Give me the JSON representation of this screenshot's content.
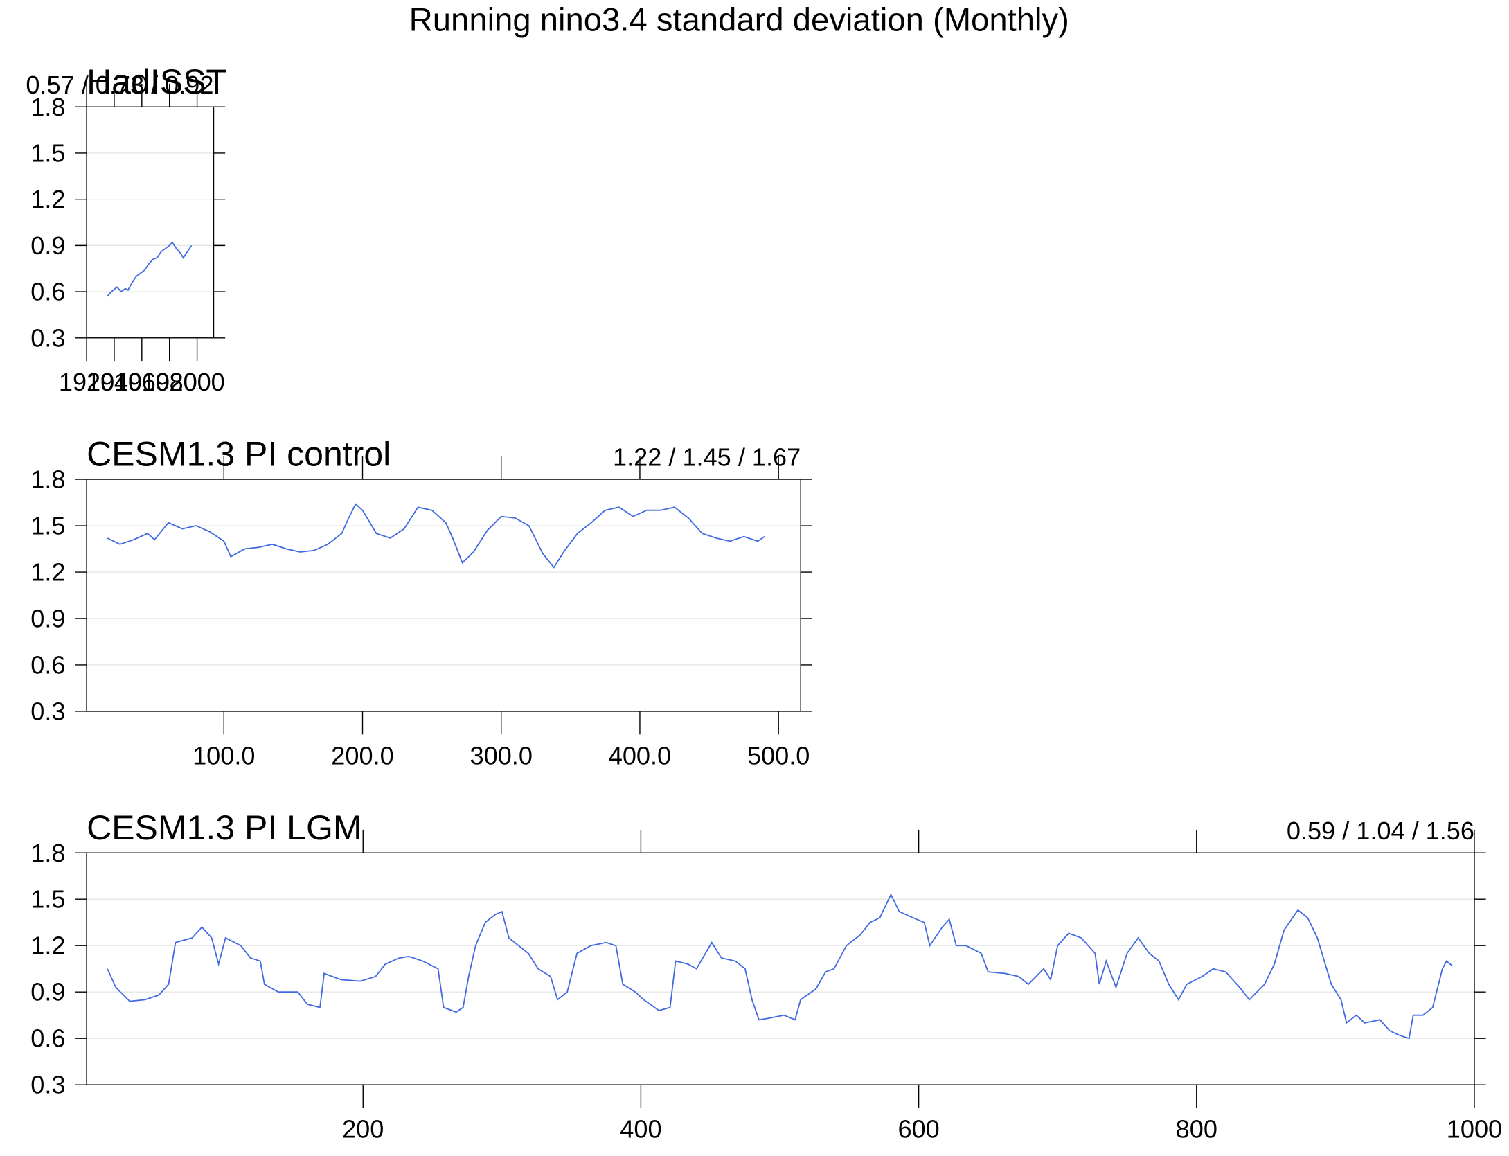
{
  "title": "Running nino3.4 standard deviation (Monthly)",
  "chart_data": [
    {
      "type": "line",
      "title": "HadISST",
      "subtitle": "0.57 / 0.73 / 0.92",
      "xlim": [
        1920,
        2012
      ],
      "xticks": [
        1920,
        1940,
        1960,
        1980,
        2000
      ],
      "ylim": [
        0.3,
        1.8
      ],
      "yticks": [
        0.3,
        0.6,
        0.9,
        1.2,
        1.5,
        1.8
      ],
      "grid": true,
      "color": "#4169e1",
      "x": [
        1935,
        1938,
        1942,
        1945,
        1948,
        1950,
        1953,
        1956,
        1959,
        1962,
        1965,
        1968,
        1971,
        1974,
        1977,
        1980,
        1982,
        1985,
        1988,
        1990,
        1993,
        1996
      ],
      "values": [
        0.57,
        0.6,
        0.63,
        0.6,
        0.62,
        0.61,
        0.66,
        0.7,
        0.72,
        0.74,
        0.78,
        0.81,
        0.82,
        0.86,
        0.88,
        0.9,
        0.92,
        0.88,
        0.85,
        0.82,
        0.86,
        0.9
      ]
    },
    {
      "type": "line",
      "title": "CESM1.3 PI control",
      "subtitle": "1.22 / 1.45 / 1.67",
      "xlim": [
        1,
        516
      ],
      "xticks": [
        {
          "value": 100,
          "label": "100.0"
        },
        {
          "value": 200,
          "label": "200.0"
        },
        {
          "value": 300,
          "label": "300.0"
        },
        {
          "value": 400,
          "label": "400.0"
        },
        {
          "value": 500,
          "label": "500.0"
        }
      ],
      "ylim": [
        0.3,
        1.8
      ],
      "yticks": [
        0.3,
        0.6,
        0.9,
        1.2,
        1.5,
        1.8
      ],
      "grid": true,
      "color": "#4169e1",
      "x": [
        16,
        25,
        35,
        45,
        50,
        60,
        70,
        80,
        90,
        100,
        105,
        115,
        125,
        135,
        145,
        155,
        165,
        175,
        185,
        190,
        195,
        200,
        210,
        220,
        230,
        240,
        250,
        260,
        265,
        272,
        280,
        290,
        300,
        310,
        320,
        330,
        338,
        345,
        355,
        365,
        375,
        385,
        395,
        405,
        415,
        425,
        435,
        445,
        455,
        465,
        475,
        485,
        490
      ],
      "values": [
        1.42,
        1.38,
        1.41,
        1.45,
        1.41,
        1.52,
        1.48,
        1.5,
        1.46,
        1.4,
        1.3,
        1.35,
        1.36,
        1.38,
        1.35,
        1.33,
        1.34,
        1.38,
        1.45,
        1.55,
        1.64,
        1.6,
        1.45,
        1.42,
        1.48,
        1.62,
        1.6,
        1.52,
        1.42,
        1.26,
        1.33,
        1.47,
        1.56,
        1.55,
        1.5,
        1.32,
        1.23,
        1.33,
        1.45,
        1.52,
        1.6,
        1.62,
        1.56,
        1.6,
        1.6,
        1.62,
        1.55,
        1.45,
        1.42,
        1.4,
        1.43,
        1.4,
        1.43
      ]
    },
    {
      "type": "line",
      "title": "CESM1.3 PI LGM",
      "subtitle": "0.59 / 1.04 / 1.56",
      "xlim": [
        1,
        1000
      ],
      "xticks": [
        200,
        400,
        600,
        800,
        1000
      ],
      "ylim": [
        0.3,
        1.8
      ],
      "yticks": [
        0.3,
        0.6,
        0.9,
        1.2,
        1.5,
        1.8
      ],
      "grid": true,
      "color": "#4169e1",
      "x": [
        16,
        22,
        32,
        43,
        53,
        60,
        65,
        77,
        84,
        91,
        96,
        101,
        112,
        119,
        126,
        129,
        139,
        153,
        160,
        169,
        172,
        184,
        198,
        209,
        216,
        226,
        233,
        243,
        254,
        258,
        267,
        272,
        276,
        281,
        288,
        295,
        300,
        305,
        312,
        319,
        326,
        335,
        340,
        347,
        354,
        364,
        375,
        382,
        387,
        396,
        402,
        413,
        421,
        425,
        434,
        440,
        451,
        458,
        468,
        475,
        480,
        485,
        492,
        503,
        511,
        515,
        526,
        533,
        539,
        548,
        558,
        565,
        572,
        580,
        586,
        596,
        604,
        608,
        617,
        622,
        627,
        634,
        645,
        650,
        662,
        672,
        679,
        690,
        695,
        700,
        708,
        717,
        727,
        730,
        735,
        742,
        750,
        758,
        766,
        773,
        780,
        787,
        793,
        804,
        812,
        821,
        831,
        838,
        849,
        856,
        863,
        873,
        880,
        887,
        897,
        904,
        908,
        915,
        921,
        932,
        939,
        946,
        953,
        956,
        963,
        970,
        977,
        980,
        984
      ],
      "values": [
        1.05,
        0.93,
        0.84,
        0.85,
        0.88,
        0.95,
        1.22,
        1.25,
        1.32,
        1.25,
        1.08,
        1.25,
        1.2,
        1.12,
        1.1,
        0.95,
        0.9,
        0.9,
        0.82,
        0.8,
        1.02,
        0.98,
        0.97,
        1.0,
        1.08,
        1.12,
        1.13,
        1.1,
        1.05,
        0.8,
        0.77,
        0.8,
        1.0,
        1.2,
        1.35,
        1.4,
        1.42,
        1.25,
        1.2,
        1.15,
        1.05,
        1.0,
        0.85,
        0.9,
        1.15,
        1.2,
        1.22,
        1.2,
        0.95,
        0.9,
        0.85,
        0.78,
        0.8,
        1.1,
        1.08,
        1.05,
        1.22,
        1.12,
        1.1,
        1.05,
        0.85,
        0.72,
        0.73,
        0.75,
        0.72,
        0.85,
        0.92,
        1.03,
        1.05,
        1.2,
        1.27,
        1.35,
        1.38,
        1.53,
        1.42,
        1.38,
        1.35,
        1.2,
        1.32,
        1.37,
        1.2,
        1.2,
        1.15,
        1.03,
        1.02,
        1.0,
        0.95,
        1.05,
        0.98,
        1.2,
        1.28,
        1.25,
        1.15,
        0.95,
        1.1,
        0.93,
        1.15,
        1.25,
        1.15,
        1.1,
        0.95,
        0.85,
        0.95,
        1.0,
        1.05,
        1.03,
        0.93,
        0.85,
        0.95,
        1.08,
        1.3,
        1.43,
        1.38,
        1.25,
        0.95,
        0.85,
        0.7,
        0.75,
        0.7,
        0.72,
        0.65,
        0.62,
        0.6,
        0.75,
        0.75,
        0.8,
        1.05,
        1.1,
        1.07
      ]
    }
  ]
}
